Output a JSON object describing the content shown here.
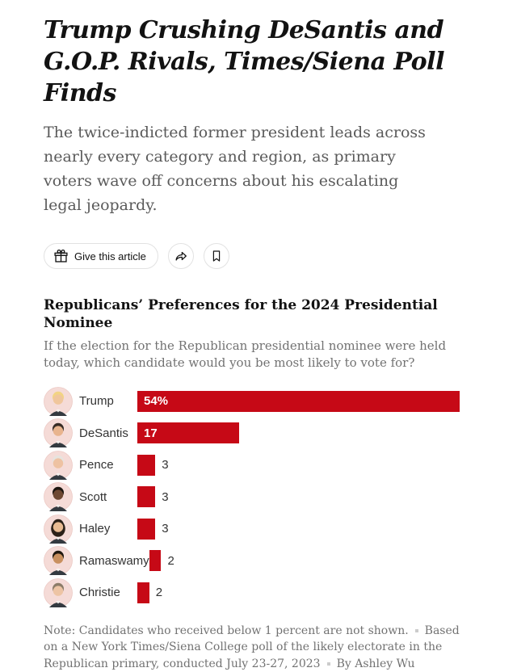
{
  "article": {
    "headline": "Trump Crushing DeSantis and G.O.P. Rivals, Times/Siena Poll Finds",
    "subheadline": "The twice-indicted former president leads across nearly every category and region, as primary voters wave off concerns about his escalating legal jeopardy.",
    "actions": {
      "give_article_label": "Give this article",
      "icons": [
        "gift-icon",
        "share-icon",
        "bookmark-icon"
      ]
    }
  },
  "chart_data": {
    "type": "bar",
    "orientation": "horizontal",
    "title": "Republicans’ Preferences for the 2024 Presidential Nominee",
    "subtitle": "If the election for the Republican presidential nominee were held today, which candidate would you be most likely to vote for?",
    "categories": [
      "Trump",
      "DeSantis",
      "Pence",
      "Scott",
      "Haley",
      "Ramaswamy",
      "Christie"
    ],
    "values": [
      54,
      17,
      3,
      3,
      3,
      2,
      2
    ],
    "value_labels": [
      "54%",
      "17",
      "3",
      "3",
      "3",
      "2",
      "2"
    ],
    "xlim": [
      0,
      54
    ],
    "bar_color": "#c60916",
    "grid": false,
    "legend": false,
    "note": "Note: Candidates who received below 1 percent are not shown.",
    "source": "Based on a New York Times/Siena College poll of the likely electorate in the Republican primary, conducted July 23-27, 2023",
    "byline": "By Ashley Wu",
    "avatar_ring_color": "#f5dbd7",
    "avatars": [
      {
        "skin": "#f0c69c",
        "hair": "#f2d483",
        "long_hair": false
      },
      {
        "skin": "#e8b48e",
        "hair": "#372c25",
        "long_hair": false
      },
      {
        "skin": "#eec2a2",
        "hair": "#e7e3de",
        "long_hair": false
      },
      {
        "skin": "#6e4832",
        "hair": "#1c150f",
        "long_hair": false
      },
      {
        "skin": "#e9bb92",
        "hair": "#2c2118",
        "long_hair": true
      },
      {
        "skin": "#c9905f",
        "hair": "#20180f",
        "long_hair": false
      },
      {
        "skin": "#edc4a4",
        "hair": "#8c7c68",
        "long_hair": false
      }
    ]
  }
}
